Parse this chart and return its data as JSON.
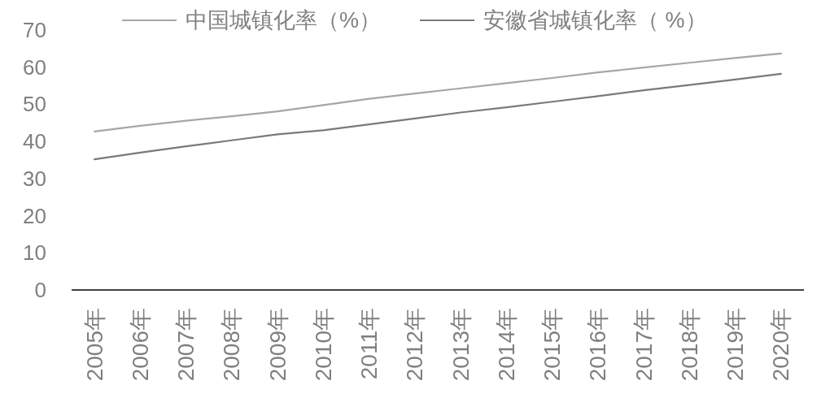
{
  "chart_data": {
    "type": "line",
    "categories": [
      "2005年",
      "2006年",
      "2007年",
      "2008年",
      "2009年",
      "2010年",
      "2011年",
      "2012年",
      "2013年",
      "2014年",
      "2015年",
      "2016年",
      "2017年",
      "2018年",
      "2019年",
      "2020年"
    ],
    "series": [
      {
        "name": "中国城镇化率（%）",
        "color": "#a6a6a6",
        "values": [
          42.7,
          44.2,
          45.6,
          46.8,
          48.1,
          49.8,
          51.5,
          52.9,
          54.3,
          55.7,
          57.1,
          58.6,
          59.9,
          61.2,
          62.5,
          63.7
        ]
      },
      {
        "name": "安徽省城镇化率（ %）",
        "color": "#7a7a7a",
        "values": [
          35.2,
          37.0,
          38.7,
          40.3,
          41.9,
          43.0,
          44.6,
          46.2,
          47.8,
          49.2,
          50.7,
          52.2,
          53.8,
          55.2,
          56.7,
          58.2
        ]
      }
    ],
    "ylim": [
      0,
      70
    ],
    "yticks": [
      0,
      10,
      20,
      30,
      40,
      50,
      60,
      70
    ],
    "grid": false,
    "legend": "top",
    "marker": "none",
    "line_style": "solid"
  }
}
